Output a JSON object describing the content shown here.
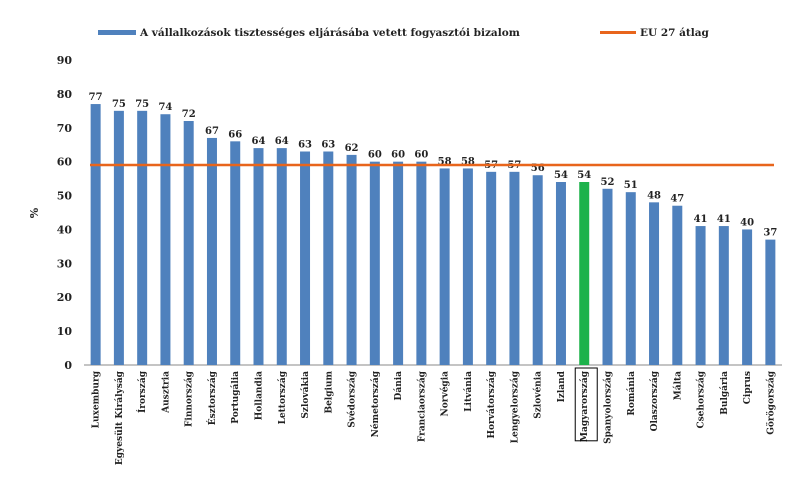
{
  "chart_data": {
    "type": "bar",
    "ylabel": "%",
    "ylim": [
      0,
      90
    ],
    "yticks": [
      0,
      10,
      20,
      30,
      40,
      50,
      60,
      70,
      80,
      90
    ],
    "categories": [
      "Luxemburg",
      "Egyesült Királyság",
      "Írország",
      "Ausztria",
      "Finnország",
      "Észtország",
      "Portugália",
      "Hollandia",
      "Lettország",
      "Szlovákia",
      "Belgium",
      "Svédország",
      "Németország",
      "Dánia",
      "Franciaország",
      "Norvégia",
      "Litvánia",
      "Horvátország",
      "Lengyelország",
      "Szlovénia",
      "Izland",
      "Magyarország",
      "Spanyolország",
      "Románia",
      "Olaszország",
      "Málta",
      "Csehország",
      "Bulgária",
      "Ciprus",
      "Görögország"
    ],
    "series": [
      {
        "name": "A vállalkozások tisztességes eljárásába vetett fogyasztói bizalom",
        "values": [
          77,
          75,
          75,
          74,
          72,
          67,
          66,
          64,
          64,
          63,
          63,
          62,
          60,
          60,
          60,
          58,
          58,
          57,
          57,
          56,
          54,
          54,
          52,
          51,
          48,
          47,
          41,
          41,
          40,
          37
        ],
        "color": "#4F81BD",
        "highlight_category": "Magyarország",
        "highlight_color": "#1DB24B"
      },
      {
        "name": "EU 27 átlag",
        "type": "line",
        "value": 59,
        "color": "#E8651C"
      }
    ],
    "grid": false,
    "legend_position": "top"
  }
}
